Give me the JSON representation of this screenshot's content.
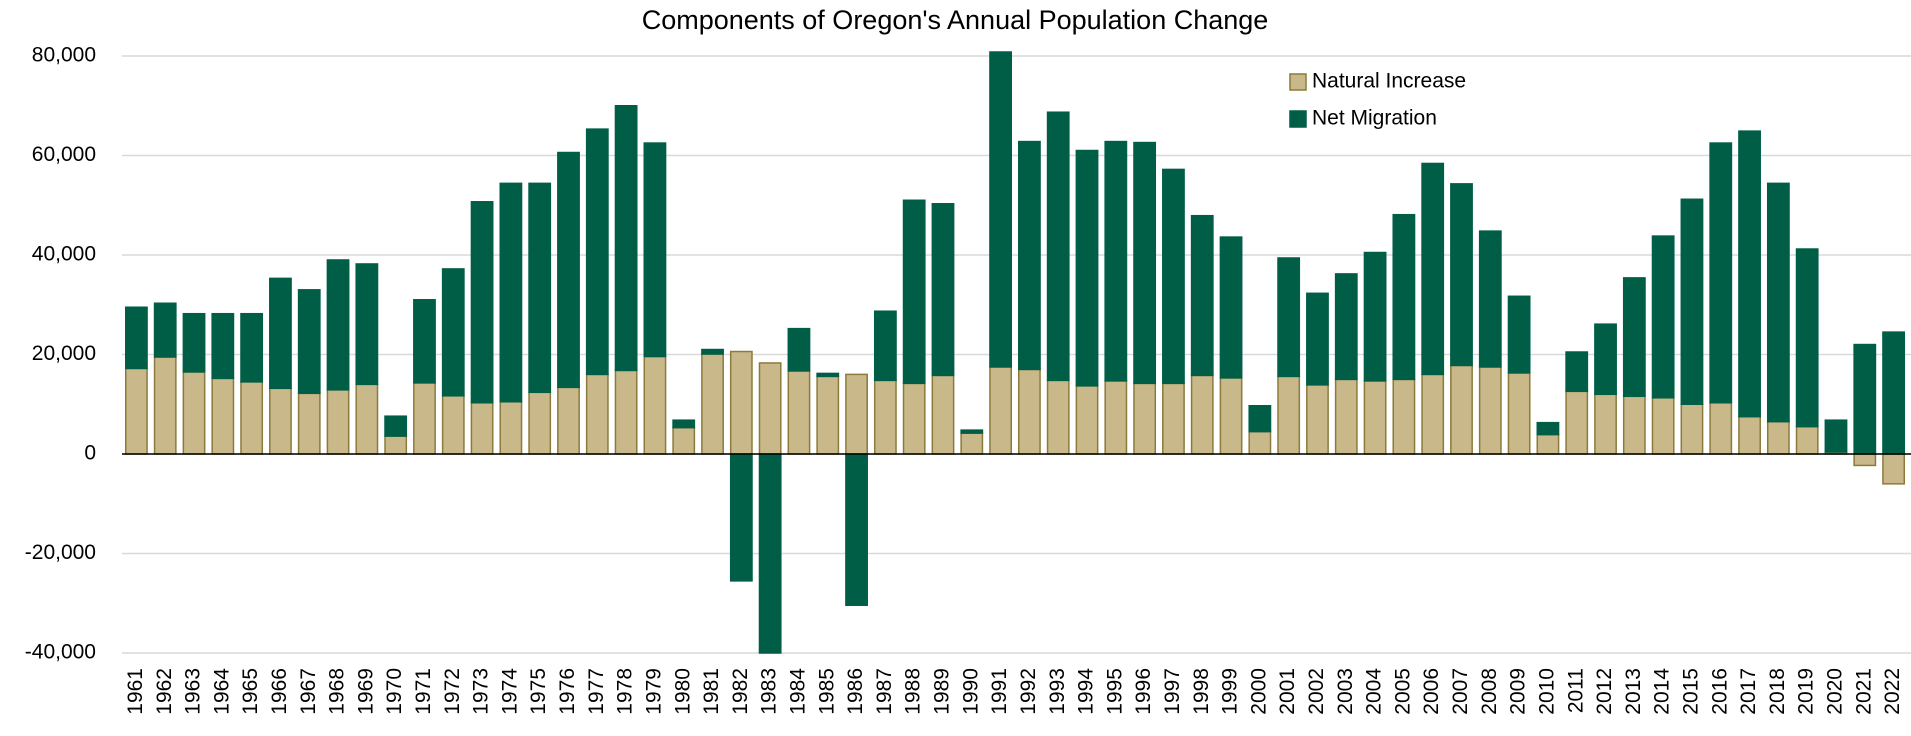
{
  "chart_data": {
    "type": "bar",
    "stacked": true,
    "title": "Components of Oregon's Annual Population Change",
    "categories": [
      "1961",
      "1962",
      "1963",
      "1964",
      "1965",
      "1966",
      "1967",
      "1968",
      "1969",
      "1970",
      "1971",
      "1972",
      "1973",
      "1974",
      "1975",
      "1976",
      "1977",
      "1978",
      "1979",
      "1980",
      "1981",
      "1982",
      "1983",
      "1984",
      "1985",
      "1986",
      "1987",
      "1988",
      "1989",
      "1990",
      "1991",
      "1992",
      "1993",
      "1994",
      "1995",
      "1996",
      "1997",
      "1998",
      "1999",
      "2000",
      "2001",
      "2002",
      "2003",
      "2004",
      "2005",
      "2006",
      "2007",
      "2008",
      "2009",
      "2010",
      "2011",
      "2012",
      "2013",
      "2014",
      "2015",
      "2016",
      "2017",
      "2018",
      "2019",
      "2020",
      "2021",
      "2022"
    ],
    "series": [
      {
        "name": "Natural Increase",
        "color": "#c9b98a",
        "edge": "#8c7a3c",
        "values": [
          17200,
          19500,
          16500,
          15200,
          14500,
          13200,
          12200,
          12900,
          14000,
          3600,
          14300,
          11700,
          10300,
          10500,
          12400,
          13400,
          16000,
          16800,
          19600,
          5300,
          20100,
          20600,
          18300,
          16700,
          15600,
          16000,
          14800,
          14200,
          15800,
          4200,
          17500,
          17000,
          14800,
          13700,
          14700,
          14200,
          14200,
          15800,
          15300,
          4500,
          15600,
          13900,
          15000,
          14700,
          15000,
          16000,
          17800,
          17500,
          16300,
          3900,
          12600,
          12000,
          11600,
          11300,
          10000,
          10300,
          7500,
          6500,
          5500,
          400,
          -2300,
          -6000
        ]
      },
      {
        "name": "Net Migration",
        "color": "#005e47",
        "edge": "#005e47",
        "values": [
          12300,
          10800,
          11700,
          13000,
          13700,
          22100,
          20800,
          26100,
          24200,
          4000,
          16700,
          25500,
          40400,
          43900,
          42000,
          47200,
          49300,
          53200,
          42900,
          1500,
          900,
          -25500,
          -40000,
          8500,
          600,
          -30400,
          13900,
          36800,
          34500,
          600,
          63300,
          45800,
          53900,
          47300,
          48100,
          48400,
          43000,
          32100,
          28300,
          5200,
          23800,
          18400,
          21200,
          25800,
          33100,
          42400,
          36500,
          27300,
          15400,
          2400,
          7900,
          14100,
          23800,
          32500,
          41200,
          52200,
          57400,
          47900,
          35700,
          6400,
          22000,
          24500
        ]
      }
    ],
    "ylim": [
      -40000,
      80000
    ],
    "yticks": [
      {
        "value": -40000,
        "label": "-40,000"
      },
      {
        "value": -20000,
        "label": "-20,000"
      },
      0,
      {
        "value": 20000,
        "label": "20,000"
      },
      {
        "value": 40000,
        "label": "40,000"
      },
      {
        "value": 60000,
        "label": "60,000"
      },
      {
        "value": 80000,
        "label": "80,000"
      }
    ],
    "grid": true,
    "legend": "top-right"
  }
}
